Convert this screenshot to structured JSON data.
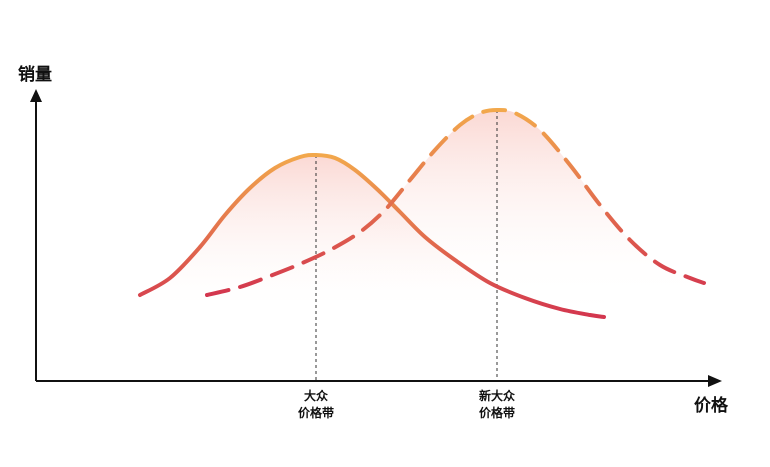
{
  "chart_data": {
    "type": "line",
    "ylabel": "销量",
    "xlabel": "价格",
    "x_markers": [
      {
        "label_line1": "大众",
        "label_line2": "价格带",
        "x": 316
      },
      {
        "label_line1": "新大众",
        "label_line2": "价格带",
        "x": 497
      }
    ],
    "series": [
      {
        "style": "solid",
        "gradient_colors": [
          "#f2a84c",
          "#d3364e"
        ],
        "points": [
          [
            140,
            295
          ],
          [
            170,
            278
          ],
          [
            200,
            247
          ],
          [
            225,
            215
          ],
          [
            250,
            188
          ],
          [
            275,
            168
          ],
          [
            300,
            157
          ],
          [
            316,
            155
          ],
          [
            335,
            158
          ],
          [
            355,
            170
          ],
          [
            378,
            190
          ],
          [
            400,
            212
          ],
          [
            425,
            237
          ],
          [
            455,
            260
          ],
          [
            490,
            283
          ],
          [
            525,
            298
          ],
          [
            560,
            309
          ],
          [
            590,
            315
          ],
          [
            604,
            317
          ]
        ]
      },
      {
        "style": "dashed",
        "gradient_colors": [
          "#d3364e",
          "#f2a84c"
        ],
        "points": [
          [
            207,
            295
          ],
          [
            240,
            287
          ],
          [
            270,
            276
          ],
          [
            300,
            264
          ],
          [
            330,
            250
          ],
          [
            360,
            232
          ],
          [
            385,
            210
          ],
          [
            410,
            180
          ],
          [
            435,
            150
          ],
          [
            460,
            125
          ],
          [
            480,
            113
          ],
          [
            497,
            110
          ],
          [
            515,
            113
          ],
          [
            540,
            130
          ],
          [
            570,
            165
          ],
          [
            600,
            205
          ],
          [
            630,
            240
          ],
          [
            660,
            265
          ],
          [
            690,
            278
          ],
          [
            704,
            283
          ]
        ]
      }
    ]
  }
}
